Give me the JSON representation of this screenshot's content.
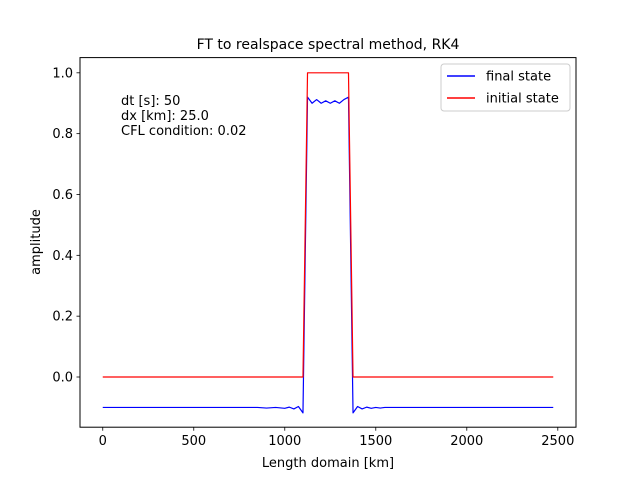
{
  "chart_data": {
    "type": "line",
    "title": "FT to realspace spectral method, RK4",
    "xlabel": "Length domain [km]",
    "ylabel": "amplitude",
    "xlim": [
      -125,
      2600
    ],
    "ylim": [
      -0.165,
      1.05
    ],
    "xticks": [
      0,
      500,
      1000,
      1500,
      2000,
      2500
    ],
    "yticks": [
      0.0,
      0.2,
      0.4,
      0.6,
      0.8,
      1.0
    ],
    "xtick_labels": [
      "0",
      "500",
      "1000",
      "1500",
      "2000",
      "2500"
    ],
    "ytick_labels": [
      "0.0",
      "0.2",
      "0.4",
      "0.6",
      "0.8",
      "1.0"
    ],
    "grid": false,
    "legend_position": "top-right",
    "annotations": [
      "dt [s]: 50",
      "dx [km]: 25.0",
      "CFL condition: 0.02"
    ],
    "series": [
      {
        "name": "final state",
        "color": "#0000ff",
        "x": [
          0,
          100,
          200,
          300,
          400,
          500,
          600,
          700,
          800,
          850,
          900,
          950,
          1000,
          1025,
          1050,
          1075,
          1100,
          1125,
          1150,
          1175,
          1200,
          1225,
          1250,
          1275,
          1300,
          1325,
          1350,
          1375,
          1400,
          1425,
          1450,
          1475,
          1500,
          1525,
          1550,
          1600,
          1700,
          1800,
          1900,
          2000,
          2100,
          2200,
          2300,
          2400,
          2475
        ],
        "y": [
          -0.1,
          -0.1,
          -0.1,
          -0.1,
          -0.1,
          -0.1,
          -0.1,
          -0.1,
          -0.1,
          -0.1,
          -0.102,
          -0.1,
          -0.103,
          -0.099,
          -0.105,
          -0.097,
          -0.118,
          0.92,
          0.9,
          0.912,
          0.9,
          0.908,
          0.9,
          0.908,
          0.9,
          0.912,
          0.92,
          -0.118,
          -0.097,
          -0.105,
          -0.099,
          -0.103,
          -0.1,
          -0.102,
          -0.1,
          -0.1,
          -0.1,
          -0.1,
          -0.1,
          -0.1,
          -0.1,
          -0.1,
          -0.1,
          -0.1,
          -0.1
        ]
      },
      {
        "name": "initial state",
        "color": "#ff0000",
        "x": [
          0,
          1100,
          1125,
          1350,
          1375,
          2475
        ],
        "y": [
          0,
          0,
          1,
          1,
          0,
          0
        ]
      }
    ]
  }
}
